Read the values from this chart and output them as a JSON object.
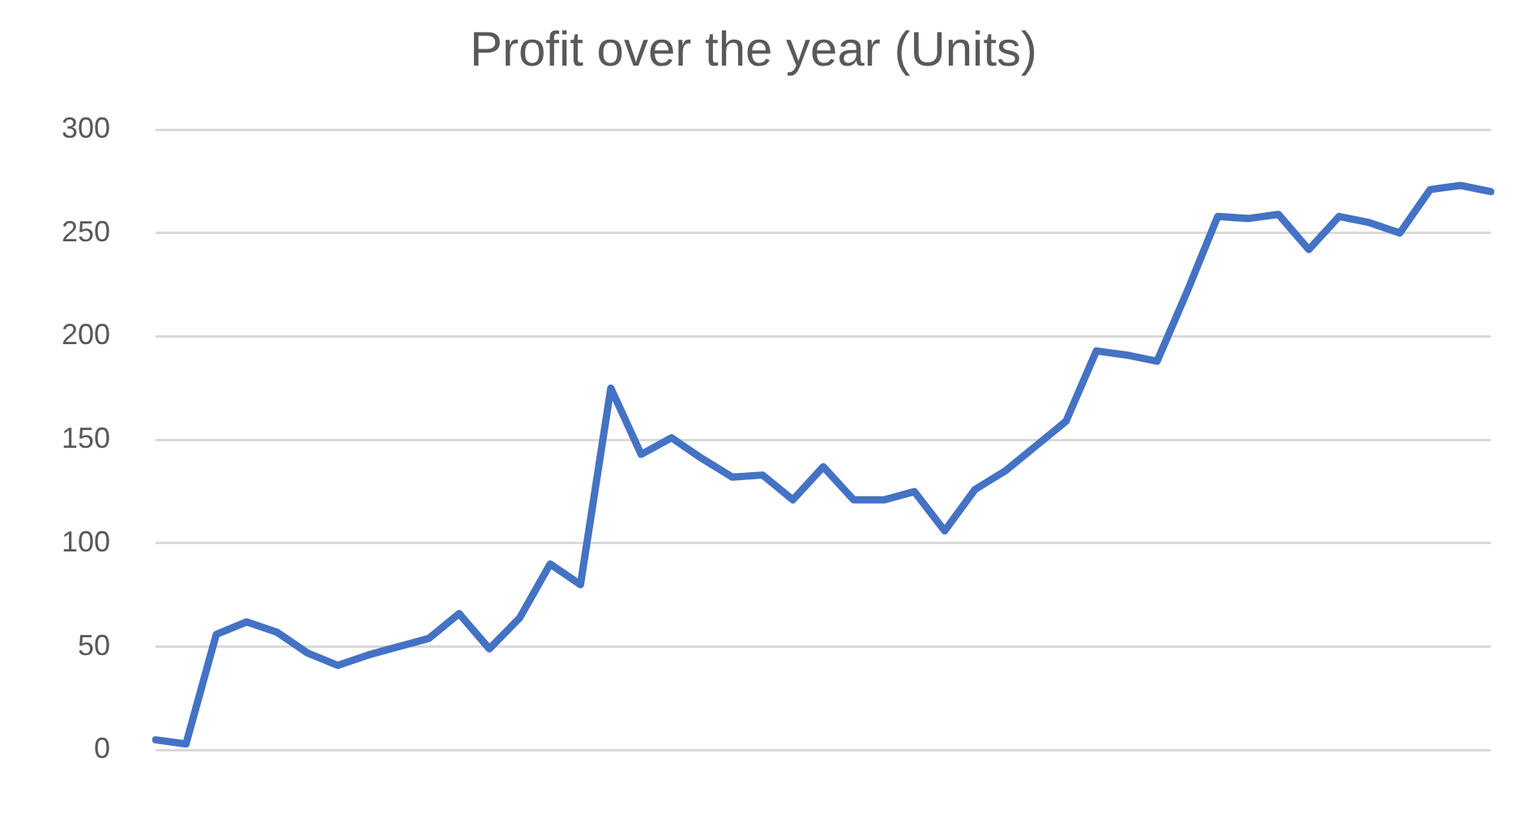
{
  "chart_data": {
    "type": "line",
    "title": "Profit over the year (Units)",
    "categories": [
      null,
      null,
      null,
      null,
      null,
      null,
      null,
      null,
      null,
      null,
      null,
      null,
      null,
      null,
      null,
      null,
      null,
      null,
      null,
      null,
      null,
      null,
      null,
      null,
      null,
      null,
      null,
      null,
      null,
      null,
      null,
      null,
      null,
      null,
      null,
      null,
      null,
      null,
      null,
      null,
      null,
      null,
      null,
      null,
      null
    ],
    "series": [
      {
        "color": "#4472c4",
        "values": [
          5,
          3,
          56,
          62,
          57,
          47,
          41,
          46,
          50,
          54,
          66,
          49,
          64,
          90,
          80,
          175,
          143,
          151,
          141,
          132,
          133,
          121,
          137,
          121,
          121,
          125,
          106,
          126,
          135,
          147,
          159,
          193,
          191,
          188,
          222,
          258,
          257,
          259,
          242,
          258,
          255,
          250,
          271,
          273,
          270
        ]
      }
    ],
    "ylim": [
      0,
      300
    ],
    "yticks": [
      0,
      50,
      100,
      150,
      200,
      250,
      300
    ],
    "grid": "y",
    "legend": false,
    "marker": "none",
    "line_style": "solid"
  }
}
